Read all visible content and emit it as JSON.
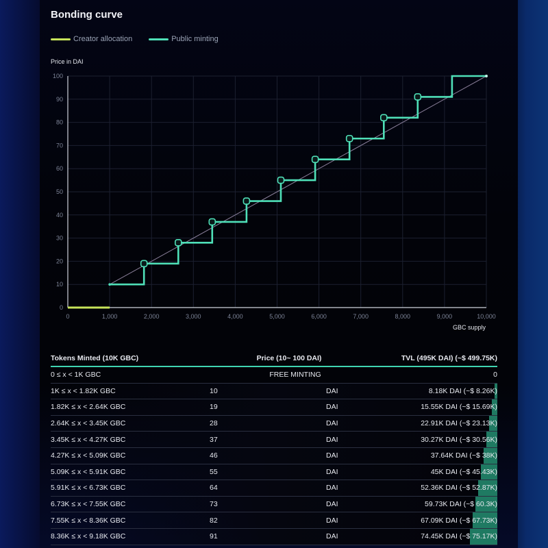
{
  "title": "Bonding curve",
  "legend": [
    {
      "label": "Creator allocation",
      "color": "#c8e45a"
    },
    {
      "label": "Public minting",
      "color": "#4fe0b8"
    }
  ],
  "axes": {
    "y_label": "Price in DAI",
    "x_label": "GBC supply",
    "y_ticks": [
      "100",
      "90",
      "80",
      "70",
      "60",
      "50",
      "40",
      "30",
      "20",
      "10",
      "0"
    ],
    "x_ticks": [
      "0",
      "1,000",
      "2,000",
      "3,000",
      "4,000",
      "5,000",
      "6,000",
      "7,000",
      "8,000",
      "9,000",
      "10,000"
    ]
  },
  "chart_data": {
    "type": "line",
    "title": "Bonding curve",
    "xlabel": "GBC supply",
    "ylabel": "Price in DAI",
    "xlim": [
      0,
      10000
    ],
    "ylim": [
      0,
      100
    ],
    "grid": true,
    "legend_position": "top-left",
    "series": [
      {
        "name": "Creator allocation",
        "color": "#c8e45a",
        "points": [
          [
            0,
            0
          ],
          [
            1000,
            0
          ]
        ]
      },
      {
        "name": "Public minting",
        "color": "#4fe0b8",
        "step": true,
        "points": [
          [
            1000,
            10
          ],
          [
            1820,
            10
          ],
          [
            1820,
            19
          ],
          [
            2640,
            19
          ],
          [
            2640,
            28
          ],
          [
            3450,
            28
          ],
          [
            3450,
            37
          ],
          [
            4270,
            37
          ],
          [
            4270,
            46
          ],
          [
            5090,
            46
          ],
          [
            5090,
            55
          ],
          [
            5910,
            55
          ],
          [
            5910,
            64
          ],
          [
            6730,
            64
          ],
          [
            6730,
            73
          ],
          [
            7550,
            73
          ],
          [
            7550,
            82
          ],
          [
            8360,
            82
          ],
          [
            8360,
            91
          ],
          [
            9180,
            91
          ],
          [
            9180,
            100
          ],
          [
            10000,
            100
          ]
        ]
      },
      {
        "name": "Linear reference",
        "color": "#8a7f9a",
        "points": [
          [
            1000,
            10
          ],
          [
            10000,
            100
          ]
        ]
      }
    ]
  },
  "table": {
    "headers": [
      "Tokens Minted (10K GBC)",
      "Price (10~ 100 DAI)",
      "TVL (495K DAI) (~$ 499.75K)"
    ],
    "free_row": {
      "range": "0 ≤ x < 1K GBC",
      "label": "FREE MINTING",
      "tvl": "0"
    },
    "rows": [
      {
        "range": "1K ≤ x < 1.82K GBC",
        "price": "10",
        "unit": "DAI",
        "tvl": "8.18K DAI (~$ 8.26K)",
        "bar": 4
      },
      {
        "range": "1.82K ≤ x < 2.64K GBC",
        "price": "19",
        "unit": "DAI",
        "tvl": "15.55K DAI (~$ 15.69K)",
        "bar": 8
      },
      {
        "range": "2.64K ≤ x < 3.45K GBC",
        "price": "28",
        "unit": "DAI",
        "tvl": "22.91K DAI (~$ 23.13K)",
        "bar": 12
      },
      {
        "range": "3.45K ≤ x < 4.27K GBC",
        "price": "37",
        "unit": "DAI",
        "tvl": "30.27K DAI (~$ 30.56K)",
        "bar": 16
      },
      {
        "range": "4.27K ≤ x < 5.09K GBC",
        "price": "46",
        "unit": "DAI",
        "tvl": "37.64K DAI (~$ 38K)",
        "bar": 20
      },
      {
        "range": "5.09K ≤ x < 5.91K GBC",
        "price": "55",
        "unit": "DAI",
        "tvl": "45K DAI (~$ 45.43K)",
        "bar": 24
      },
      {
        "range": "5.91K ≤ x < 6.73K GBC",
        "price": "64",
        "unit": "DAI",
        "tvl": "52.36K DAI (~$ 52.87K)",
        "bar": 28
      },
      {
        "range": "6.73K ≤ x < 7.55K GBC",
        "price": "73",
        "unit": "DAI",
        "tvl": "59.73K DAI (~$ 60.3K)",
        "bar": 32
      },
      {
        "range": "7.55K ≤ x < 8.36K GBC",
        "price": "82",
        "unit": "DAI",
        "tvl": "67.09K DAI (~$ 67.73K)",
        "bar": 36
      },
      {
        "range": "8.36K ≤ x < 9.18K GBC",
        "price": "91",
        "unit": "DAI",
        "tvl": "74.45K DAI (~$ 75.17K)",
        "bar": 40
      }
    ]
  }
}
